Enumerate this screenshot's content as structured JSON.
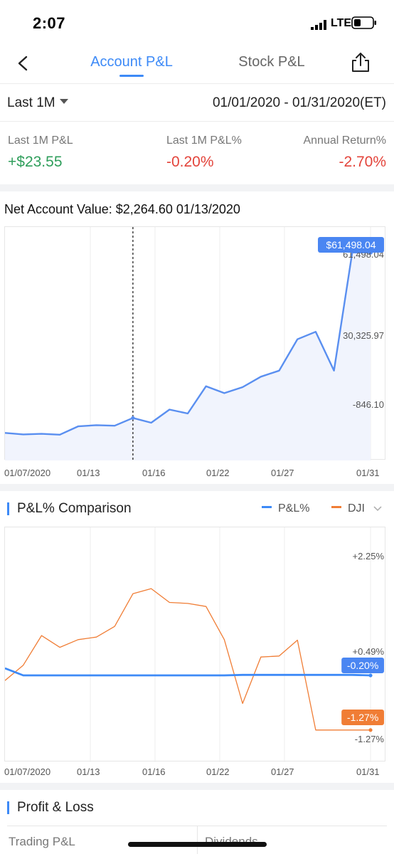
{
  "status": {
    "time": "2:07",
    "network": "LTE"
  },
  "nav": {
    "tab_account": "Account P&L",
    "tab_stock": "Stock P&L"
  },
  "period": {
    "selected": "Last 1M",
    "date_range": "01/01/2020 - 01/31/2020(ET)"
  },
  "stats": [
    {
      "label": "Last 1M P&L",
      "value": "+$23.55",
      "color": "#2f9e5b"
    },
    {
      "label": "Last 1M P&L%",
      "value": "-0.20%",
      "color": "#e3443b"
    },
    {
      "label": "Annual Return%",
      "value": "-2.70%",
      "color": "#e3443b"
    }
  ],
  "net_account_value": {
    "text": "Net Account Value: $2,264.60  01/13/2020"
  },
  "colors": {
    "accent": "#3d8af7",
    "dji": "#f07d35",
    "positive": "#2f9e5b",
    "negative": "#e3443b"
  },
  "chart_data": [
    {
      "type": "area",
      "x": [
        "01/02",
        "01/03",
        "01/06",
        "01/07",
        "01/08",
        "01/09",
        "01/10",
        "01/13",
        "01/14",
        "01/15",
        "01/16",
        "01/17",
        "01/21",
        "01/22",
        "01/23",
        "01/24",
        "01/27",
        "01/28",
        "01/29",
        "01/30",
        "01/31"
      ],
      "series": [
        {
          "values": [
            1200,
            700,
            900,
            600,
            3400,
            3800,
            3600,
            6200,
            4600,
            9000,
            7700,
            16800,
            14500,
            16500,
            20000,
            22000,
            32500,
            35000,
            22000,
            61498.04,
            61498.04
          ]
        }
      ],
      "y_ticks": [
        "61,498.04",
        "30,325.97",
        "-846.10"
      ],
      "ylim": [
        -8000,
        70000
      ],
      "x_tick_labels": [
        "01/07/2020",
        "01/13",
        "01/16",
        "01/22",
        "01/27",
        "01/31"
      ],
      "crosshair_x": "01/13",
      "last_value_badge": "$61,498.04"
    },
    {
      "type": "line",
      "x": [
        "01/02",
        "01/03",
        "01/06",
        "01/07",
        "01/08",
        "01/09",
        "01/10",
        "01/13",
        "01/14",
        "01/15",
        "01/16",
        "01/17",
        "01/21",
        "01/22",
        "01/23",
        "01/24",
        "01/27",
        "01/28",
        "01/29",
        "01/30",
        "01/31"
      ],
      "series": [
        {
          "name": "P&L%",
          "values": [
            -0.06,
            -0.2,
            -0.2,
            -0.2,
            -0.2,
            -0.2,
            -0.2,
            -0.2,
            -0.2,
            -0.2,
            -0.2,
            -0.2,
            -0.2,
            -0.19,
            -0.19,
            -0.19,
            -0.19,
            -0.19,
            -0.19,
            -0.19,
            -0.2
          ]
        },
        {
          "name": "DJI",
          "values": [
            -0.3,
            0.0,
            0.58,
            0.35,
            0.5,
            0.55,
            0.76,
            1.4,
            1.5,
            1.23,
            1.21,
            1.15,
            0.5,
            -0.75,
            0.16,
            0.18,
            0.49,
            -1.27,
            -1.27,
            -1.27,
            -1.27
          ]
        }
      ],
      "y_ticks": [
        "+2.25%",
        "+0.49%",
        "-1.27%"
      ],
      "ylim": [
        -1.9,
        2.7
      ],
      "x_tick_labels": [
        "01/07/2020",
        "01/13",
        "01/16",
        "01/22",
        "01/27",
        "01/31"
      ],
      "badges": {
        "pl": "-0.20%",
        "dji": "-1.27%"
      }
    }
  ],
  "comparison": {
    "title": "P&L% Comparison",
    "legend_pl": "P&L%",
    "legend_dji": "DJI"
  },
  "profit_loss": {
    "title": "Profit & Loss",
    "card1": "Trading P&L",
    "card2": "Dividends"
  }
}
